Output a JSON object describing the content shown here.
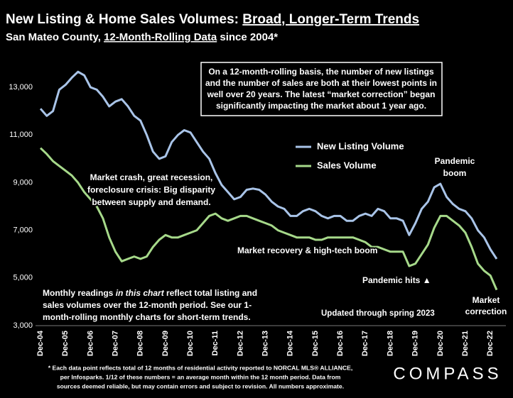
{
  "chart_data": {
    "type": "line",
    "title": [
      "New Listing & Home Sales Volumes: ",
      "Broad, Longer-Term Trends"
    ],
    "subtitle": [
      "San Mateo County, ",
      "12-Month-Rolling Data",
      " since 2004*"
    ],
    "categories": [
      "Dec-04",
      null,
      null,
      null,
      "Dec-05",
      null,
      null,
      null,
      "Dec-06",
      null,
      null,
      null,
      "Dec-07",
      null,
      null,
      null,
      "Dec-08",
      null,
      null,
      null,
      "Dec-09",
      null,
      null,
      null,
      "Dec-10",
      null,
      null,
      null,
      "Dec-11",
      null,
      null,
      null,
      "Dec-12",
      null,
      null,
      null,
      "Dec-13",
      null,
      null,
      null,
      "Dec-14",
      null,
      null,
      null,
      "Dec-15",
      null,
      null,
      null,
      "Dec-16",
      null,
      null,
      null,
      "Dec-17",
      null,
      null,
      null,
      "Dec-18",
      null,
      null,
      null,
      "Dec-19",
      null,
      null,
      null,
      "Dec-20",
      null,
      null,
      null,
      "Dec-21",
      null,
      null,
      null,
      "Dec-22",
      null
    ],
    "series": [
      {
        "name": "New Listing Volume",
        "color": "#a9c4e8",
        "values": [
          12100,
          11800,
          12000,
          12900,
          13100,
          13400,
          13650,
          13500,
          13000,
          12900,
          12600,
          12200,
          12400,
          12500,
          12200,
          11800,
          11600,
          11000,
          10300,
          10000,
          10100,
          10700,
          11000,
          11200,
          11100,
          10700,
          10300,
          10000,
          9400,
          8900,
          8600,
          8300,
          8400,
          8700,
          8750,
          8700,
          8500,
          8200,
          8000,
          7900,
          7600,
          7600,
          7800,
          7900,
          7800,
          7600,
          7500,
          7600,
          7600,
          7400,
          7400,
          7600,
          7700,
          7600,
          7900,
          7800,
          7500,
          7500,
          7400,
          6800,
          7300,
          7900,
          8200,
          8800,
          8950,
          8400,
          8100,
          7900,
          7800,
          7500,
          7000,
          6700,
          6200,
          5800
        ]
      },
      {
        "name": "Sales Volume",
        "color": "#a6d98a",
        "values": [
          10450,
          10200,
          9900,
          9700,
          9500,
          9300,
          9000,
          8600,
          8300,
          8000,
          7500,
          6700,
          6100,
          5700,
          5800,
          5900,
          5800,
          5900,
          6300,
          6600,
          6800,
          6700,
          6700,
          6800,
          6900,
          7000,
          7300,
          7600,
          7700,
          7500,
          7400,
          7500,
          7600,
          7600,
          7500,
          7400,
          7300,
          7200,
          7000,
          6900,
          6800,
          6700,
          6700,
          6700,
          6600,
          6600,
          6700,
          6700,
          6700,
          6700,
          6700,
          6600,
          6500,
          6300,
          6300,
          6200,
          6100,
          6100,
          6100,
          5500,
          5600,
          6000,
          6400,
          7100,
          7600,
          7600,
          7400,
          7200,
          6900,
          6300,
          5600,
          5300,
          5100,
          4500
        ]
      }
    ],
    "ylim": [
      3000,
      13000
    ],
    "yticks": [
      {
        "value": 3000,
        "label": "3,000"
      },
      {
        "value": 5000,
        "label": "5,000"
      },
      {
        "value": 7000,
        "label": "7,000"
      },
      {
        "value": 9000,
        "label": "9,000"
      },
      {
        "value": 11000,
        "label": "11,000"
      },
      {
        "value": 13000,
        "label": "13,000"
      }
    ],
    "grid": false,
    "annotations": {
      "box": [
        "On a 12-month-rolling basis, the number of new listings",
        "and the number of sales are both at their lowest points in",
        "well over 20 years. The latest “market correction” began",
        "significantly impacting the market about 1 year ago."
      ],
      "crash": [
        "Market crash,  great recession,",
        "foreclosure crisis: Big disparity",
        "between supply and demand."
      ],
      "recovery": [
        "Market recovery & high-tech boom"
      ],
      "pandemic_hits": [
        "Pandemic hits ▲"
      ],
      "pandemic_boom": [
        "Pandemic",
        "boom"
      ],
      "correction": [
        "Market",
        "correction"
      ],
      "updated": [
        "Updated through spring 2023"
      ],
      "note": [
        [
          "Monthly readings ",
          "in this chart",
          " reflect total listing and"
        ],
        "sales volumes over the 12-month period. See our 1-",
        "month-rolling monthly charts for short-term trends."
      ]
    },
    "footnote": [
      "* Each data point reflects total of 12 months of residential activity reported to NORCAL MLS® ALLIANCE,",
      "per Infosparks. 1/12 of these numbers = an average month within the 12 month period. Data from",
      "sources deemed reliable, but may contain errors and subject to revision. All numbers approximate."
    ],
    "logo": "COMPASS"
  }
}
